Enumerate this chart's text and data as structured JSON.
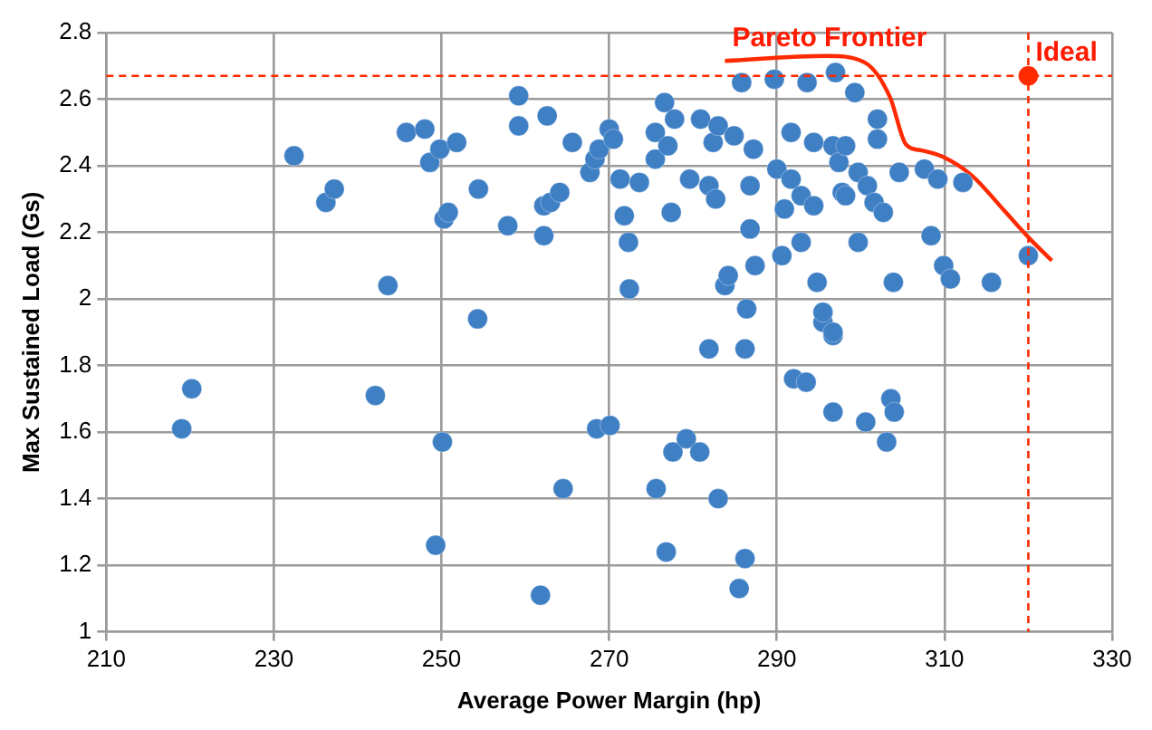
{
  "chart_data": {
    "type": "scatter",
    "xlabel": "Average Power Margin (hp)",
    "ylabel": "Max Sustained Load (Gs)",
    "xlim": [
      210,
      330
    ],
    "xticks": [
      210,
      230,
      250,
      270,
      290,
      310,
      330
    ],
    "ylim": [
      1,
      2.8
    ],
    "yticks": [
      1,
      1.2,
      1.4,
      1.6,
      1.8,
      2,
      2.2,
      2.4,
      2.6,
      2.8
    ],
    "grid": true,
    "legend": false,
    "marker": "circle",
    "series": [
      {
        "color": "#3f7fc4",
        "x": [
          219,
          220.2,
          232.4,
          236.2,
          237.2,
          242.1,
          243.6,
          245.8,
          248,
          248.6,
          249.3,
          249.8,
          250.1,
          250.3,
          250.8,
          251.8,
          254.3,
          254.4,
          257.9,
          259.2,
          259.2,
          261.8,
          262.2,
          262.2,
          262.6,
          263,
          264.1,
          264.5,
          265.6,
          267.7,
          268.3,
          268.5,
          268.8,
          270,
          270.1,
          270.5,
          271.3,
          271.8,
          272.3,
          272.4,
          273.6,
          275.5,
          275.5,
          275.6,
          276.6,
          276.8,
          277,
          277.4,
          277.6,
          277.8,
          279.2,
          279.6,
          280.8,
          280.9,
          281.9,
          281.9,
          282.4,
          282.7,
          283,
          283,
          283.8,
          284.2,
          284.9,
          285.5,
          285.8,
          286.2,
          286.2,
          286.4,
          286.8,
          286.8,
          287.2,
          287.4,
          289.7,
          290,
          290.6,
          290.9,
          291.7,
          291.7,
          292,
          292.9,
          292.9,
          293.5,
          293.6,
          294.4,
          294.4,
          294.8,
          295.5,
          295.5,
          296.7,
          296.7,
          296.7,
          296.7,
          297,
          297.4,
          297.8,
          298.2,
          298.2,
          299.3,
          299.7,
          299.7,
          300.6,
          300.8,
          301.6,
          302,
          302,
          302.7,
          303.1,
          303.6,
          303.9,
          304,
          304.6,
          307.6,
          308.4,
          309.2,
          309.9,
          310.7,
          312.2,
          315.6,
          320
        ],
        "values": [
          1.61,
          1.73,
          2.43,
          2.29,
          2.33,
          1.71,
          2.04,
          2.5,
          2.51,
          2.41,
          1.26,
          2.45,
          1.57,
          2.24,
          2.26,
          2.47,
          1.94,
          2.33,
          2.22,
          2.61,
          2.52,
          1.11,
          2.28,
          2.19,
          2.55,
          2.29,
          2.32,
          1.43,
          2.47,
          2.38,
          2.42,
          1.61,
          2.45,
          2.51,
          1.62,
          2.48,
          2.36,
          2.25,
          2.17,
          2.03,
          2.35,
          2.5,
          2.42,
          1.43,
          2.59,
          1.24,
          2.46,
          2.26,
          1.54,
          2.54,
          1.58,
          2.36,
          1.54,
          2.54,
          2.34,
          1.85,
          2.47,
          2.3,
          2.52,
          1.4,
          2.04,
          2.07,
          2.49,
          1.13,
          2.65,
          1.85,
          1.22,
          1.97,
          2.34,
          2.21,
          2.45,
          2.1,
          2.66,
          2.39,
          2.13,
          2.27,
          2.5,
          2.36,
          1.76,
          2.31,
          2.17,
          1.75,
          2.65,
          2.47,
          2.28,
          2.05,
          1.93,
          1.96,
          2.46,
          1.89,
          1.66,
          1.9,
          2.68,
          2.41,
          2.32,
          2.46,
          2.31,
          2.62,
          2.38,
          2.17,
          1.63,
          2.34,
          2.29,
          2.54,
          2.48,
          2.26,
          1.57,
          1.7,
          2.05,
          1.66,
          2.38,
          2.39,
          2.19,
          2.36,
          2.1,
          2.06,
          2.35,
          2.05,
          2.13
        ]
      },
      {
        "type": "scatter",
        "color": "#ff2a00",
        "x": [
          320
        ],
        "values": [
          2.67
        ]
      },
      {
        "type": "line",
        "color": "#ff2a00",
        "marker": "none",
        "x": [
          283.8,
          295.9,
          300.5,
          303.5,
          305.4,
          307.3,
          309.9,
          313.3,
          317.1,
          320.2,
          322.8
        ],
        "values": [
          2.715,
          2.73,
          2.71,
          2.606,
          2.464,
          2.446,
          2.426,
          2.37,
          2.266,
          2.18,
          2.115
        ]
      }
    ],
    "ref_lines": [
      {
        "axis": "y",
        "value": 2.67,
        "color": "#ff2a00",
        "line_style": "dashed"
      },
      {
        "axis": "x",
        "value": 320,
        "color": "#ff2a00",
        "line_style": "dashed"
      }
    ],
    "annotations": [
      {
        "text": "Pareto Frontier",
        "x": 283.8,
        "y": 2.715
      },
      {
        "text": "Ideal",
        "x": 320,
        "y": 2.67
      }
    ]
  }
}
